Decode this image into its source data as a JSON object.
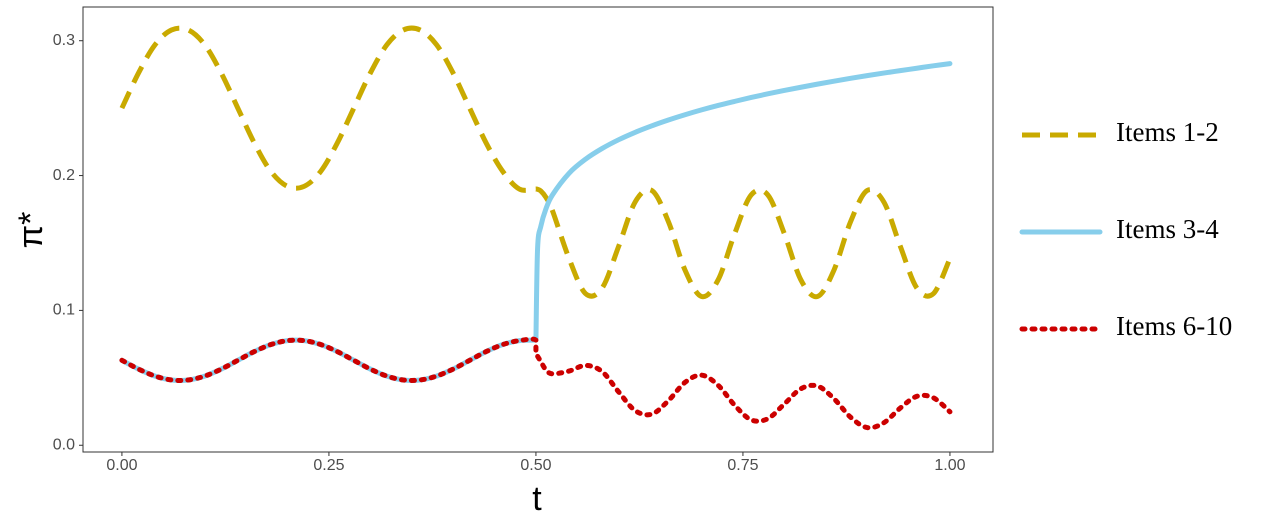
{
  "chart_data": {
    "type": "line",
    "xlabel": "t",
    "ylabel": "π*",
    "xlim": [
      -0.047,
      1.052
    ],
    "ylim": [
      -0.005,
      0.325
    ],
    "xticks": [
      {
        "value": 0,
        "label": "0.00"
      },
      {
        "value": 0.25,
        "label": "0.25"
      },
      {
        "value": 0.5,
        "label": "0.50"
      },
      {
        "value": 0.75,
        "label": "0.75"
      },
      {
        "value": 1,
        "label": "1.00"
      }
    ],
    "yticks": [
      {
        "value": 0,
        "label": "0.0"
      },
      0.1,
      0.2,
      0.3
    ],
    "grid": false,
    "legend": "right",
    "x": [
      0,
      0.02,
      0.04,
      0.06,
      0.08,
      0.1,
      0.12,
      0.14,
      0.16,
      0.18,
      0.2,
      0.22,
      0.24,
      0.26,
      0.28,
      0.3,
      0.32,
      0.34,
      0.36,
      0.38,
      0.4,
      0.42,
      0.44,
      0.46,
      0.48,
      0.5,
      0.5,
      0.502,
      0.506,
      0.512,
      0.52,
      0.54,
      0.56,
      0.58,
      0.6,
      0.62,
      0.64,
      0.66,
      0.68,
      0.7,
      0.72,
      0.74,
      0.76,
      0.78,
      0.8,
      0.82,
      0.84,
      0.86,
      0.88,
      0.9,
      0.92,
      0.94,
      0.96,
      0.98,
      1.0
    ],
    "series": [
      {
        "name": "Items 1-2",
        "color": "#C9AA00",
        "linestyle": "dashed",
        "values": [
          0.25,
          0.276,
          0.297,
          0.308,
          0.308,
          0.297,
          0.276,
          0.25,
          0.224,
          0.203,
          0.192,
          0.192,
          0.203,
          0.224,
          0.25,
          0.276,
          0.297,
          0.308,
          0.308,
          0.297,
          0.276,
          0.25,
          0.224,
          0.203,
          0.19,
          0.19,
          0.19,
          0.1898,
          0.1885,
          0.1839,
          0.1739,
          0.1385,
          0.1124,
          0.1166,
          0.1477,
          0.1806,
          0.1889,
          0.1658,
          0.13,
          0.1103,
          0.1226,
          0.1569,
          0.1857,
          0.1857,
          0.1569,
          0.1226,
          0.1103,
          0.13,
          0.1658,
          0.1889,
          0.1806,
          0.1477,
          0.1166,
          0.1124,
          0.1385
        ]
      },
      {
        "name": "Items 3-4",
        "color": "#87CEEB",
        "linestyle": "solid",
        "values": [
          0.063,
          0.0565,
          0.0513,
          0.0484,
          0.0484,
          0.0513,
          0.0565,
          0.063,
          0.0695,
          0.0747,
          0.0776,
          0.0776,
          0.0747,
          0.0695,
          0.063,
          0.0565,
          0.0513,
          0.0484,
          0.0484,
          0.0513,
          0.0565,
          0.063,
          0.0695,
          0.0747,
          0.0776,
          0.078,
          0.078,
          0.146,
          0.1626,
          0.1752,
          0.1857,
          0.2017,
          0.2122,
          0.2201,
          0.2266,
          0.2321,
          0.2369,
          0.2412,
          0.2451,
          0.2487,
          0.252,
          0.255,
          0.2579,
          0.2606,
          0.2631,
          0.2655,
          0.2678,
          0.27,
          0.2721,
          0.2741,
          0.276,
          0.2778,
          0.2796,
          0.2814,
          0.283
        ]
      },
      {
        "name": "Items 6-10",
        "color": "#CC0000",
        "linestyle": "dotted",
        "values": [
          0.063,
          0.0565,
          0.0513,
          0.0484,
          0.0484,
          0.0513,
          0.0565,
          0.063,
          0.0695,
          0.0747,
          0.0776,
          0.0776,
          0.0747,
          0.0695,
          0.063,
          0.0565,
          0.0513,
          0.0484,
          0.0484,
          0.0513,
          0.0565,
          0.063,
          0.0695,
          0.0747,
          0.0776,
          0.078,
          0.068,
          0.066,
          0.062,
          0.056,
          0.053,
          0.055,
          0.0592,
          0.0546,
          0.0395,
          0.0256,
          0.0231,
          0.0331,
          0.0466,
          0.052,
          0.0445,
          0.0297,
          0.0188,
          0.0197,
          0.0306,
          0.0419,
          0.0439,
          0.0345,
          0.0208,
          0.0131,
          0.0166,
          0.0276,
          0.0363,
          0.0352,
          0.0248
        ]
      }
    ]
  }
}
